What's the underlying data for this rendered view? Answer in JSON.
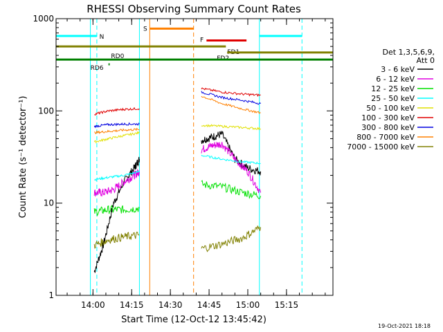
{
  "chart_data": {
    "type": "line",
    "title": "RHESSI Observing Summary Count Rates",
    "xlabel": "Start Time (12-Oct-12 13:45:42)",
    "ylabel": "Count Rate (s⁻¹ detector⁻¹)",
    "y_scale": "log",
    "ylim": [
      1,
      1000
    ],
    "xlim": [
      "13:45:42",
      "15:33:00"
    ],
    "x_ticks": [
      "14:00",
      "14:15",
      "14:30",
      "14:45",
      "15:00",
      "15:15"
    ],
    "y_ticks": [
      "1",
      "10",
      "100",
      "1000"
    ],
    "legend_header": [
      "Det 1,3,5,6,9,",
      "Att 0"
    ],
    "legend_position": "right",
    "timestamp": "19-Oct-2021 18:18",
    "series": [
      {
        "name": "3 - 6 keV",
        "color": "#000000",
        "segments": [
          {
            "t": [
              "14:00:30",
              "14:04",
              "14:08",
              "14:12",
              "14:16",
              "14:18"
            ],
            "y": [
              1.8,
              3.5,
              10,
              17,
              24,
              30
            ]
          },
          {
            "t": [
              "14:42",
              "14:46",
              "14:50",
              "14:55",
              "15:00",
              "15:05"
            ],
            "y": [
              48,
              52,
              56,
              30,
              24,
              22
            ]
          }
        ]
      },
      {
        "name": "6 - 12 keV",
        "color": "#e000e0",
        "segments": [
          {
            "t": [
              "14:00:30",
              "14:04",
              "14:08",
              "14:12",
              "14:16",
              "14:18"
            ],
            "y": [
              13,
              13,
              14,
              17,
              20,
              22
            ]
          },
          {
            "t": [
              "14:42",
              "14:46",
              "14:50",
              "14:55",
              "15:00",
              "15:05"
            ],
            "y": [
              38,
              42,
              44,
              30,
              22,
              13
            ]
          }
        ]
      },
      {
        "name": "12 - 25 keV",
        "color": "#00e000",
        "segments": [
          {
            "t": [
              "14:00:30",
              "14:06",
              "14:12",
              "14:18"
            ],
            "y": [
              8,
              8.5,
              8.5,
              8.8
            ]
          },
          {
            "t": [
              "14:42",
              "14:50",
              "14:58",
              "15:05"
            ],
            "y": [
              16,
              15,
              13,
              12
            ]
          }
        ]
      },
      {
        "name": "25 - 50 keV",
        "color": "#00ffff",
        "segments": [
          {
            "t": [
              "14:00:30",
              "14:06",
              "14:12",
              "14:18"
            ],
            "y": [
              18,
              19,
              20,
              22
            ]
          },
          {
            "t": [
              "14:42",
              "14:50",
              "14:58",
              "15:05"
            ],
            "y": [
              33,
              30,
              28,
              27
            ]
          }
        ]
      },
      {
        "name": "50 - 100 keV",
        "color": "#e0e000",
        "segments": [
          {
            "t": [
              "14:00:30",
              "14:06",
              "14:12",
              "14:18"
            ],
            "y": [
              46,
              50,
              54,
              58
            ]
          },
          {
            "t": [
              "14:42",
              "14:50",
              "14:58",
              "15:05"
            ],
            "y": [
              70,
              68,
              66,
              64
            ]
          }
        ]
      },
      {
        "name": "100 - 300 keV",
        "color": "#e00000",
        "segments": [
          {
            "t": [
              "14:00:30",
              "14:06",
              "14:12",
              "14:18"
            ],
            "y": [
              92,
              100,
              104,
              106
            ]
          },
          {
            "t": [
              "14:42",
              "14:50",
              "14:58",
              "15:05"
            ],
            "y": [
              175,
              160,
              152,
              148
            ]
          }
        ]
      },
      {
        "name": "300 - 800 keV",
        "color": "#0000e0",
        "segments": [
          {
            "t": [
              "14:00:30",
              "14:06",
              "14:12",
              "14:18"
            ],
            "y": [
              68,
              71,
              72,
              72
            ]
          },
          {
            "t": [
              "14:42",
              "14:50",
              "14:58",
              "15:05"
            ],
            "y": [
              160,
              140,
              130,
              120
            ]
          }
        ]
      },
      {
        "name": "800 - 7000 keV",
        "color": "#ff8000",
        "segments": [
          {
            "t": [
              "14:00:30",
              "14:06",
              "14:12",
              "14:18"
            ],
            "y": [
              58,
              60,
              62,
              63
            ]
          },
          {
            "t": [
              "14:42",
              "14:50",
              "14:58",
              "15:05"
            ],
            "y": [
              145,
              120,
              105,
              95
            ]
          }
        ]
      },
      {
        "name": "7000 - 15000 keV",
        "color": "#808000",
        "segments": [
          {
            "t": [
              "14:00:30",
              "14:06",
              "14:12",
              "14:18"
            ],
            "y": [
              3.5,
              4,
              4.3,
              4.5
            ]
          },
          {
            "t": [
              "14:42",
              "14:50",
              "14:58",
              "15:05"
            ],
            "y": [
              3.2,
              3.6,
              4.2,
              5.5
            ]
          }
        ]
      }
    ],
    "flag_bars": [
      {
        "label": "N",
        "color": "#00ffff",
        "y": 650,
        "ranges": [
          [
            "13:45:42",
            "14:01:30"
          ],
          [
            "15:04:30",
            "15:21:00"
          ]
        ]
      },
      {
        "label": "S",
        "color": "#ff8000",
        "y": 780,
        "ranges": [
          [
            "14:22:00",
            "14:39:00"
          ]
        ]
      },
      {
        "label": "F",
        "color": "#e00000",
        "y": 580,
        "ranges": [
          [
            "14:44:00",
            "14:59:30"
          ]
        ]
      },
      {
        "label": "FD1",
        "color": "#808000",
        "y": 500,
        "ranges": [
          [
            "13:45:42",
            "14:51:30"
          ]
        ]
      },
      {
        "label": "FD2",
        "color": "#808000",
        "y": 430,
        "ranges": [
          [
            "14:52:00",
            "15:33:00"
          ]
        ]
      },
      {
        "label": "RD0",
        "color": "#008000",
        "y": 360,
        "ranges": [
          [
            "13:45:42",
            "15:33:00"
          ]
        ]
      },
      {
        "label": "RD6",
        "color": "#008000",
        "y": 320,
        "ranges": [
          [
            "14:06:00",
            "14:06:30"
          ]
        ]
      }
    ],
    "vertical_lines": [
      {
        "t": "13:59:00",
        "color": "#00ffff",
        "style": "solid"
      },
      {
        "t": "14:01:30",
        "color": "#00ffff",
        "style": "dashed"
      },
      {
        "t": "14:18:00",
        "color": "#00ffff",
        "style": "solid"
      },
      {
        "t": "14:22:00",
        "color": "#ff8000",
        "style": "solid"
      },
      {
        "t": "14:39:00",
        "color": "#ff8000",
        "style": "dashed"
      },
      {
        "t": "15:04:30",
        "color": "#00ffff",
        "style": "solid"
      },
      {
        "t": "15:21:00",
        "color": "#00ffff",
        "style": "dashed"
      }
    ]
  }
}
